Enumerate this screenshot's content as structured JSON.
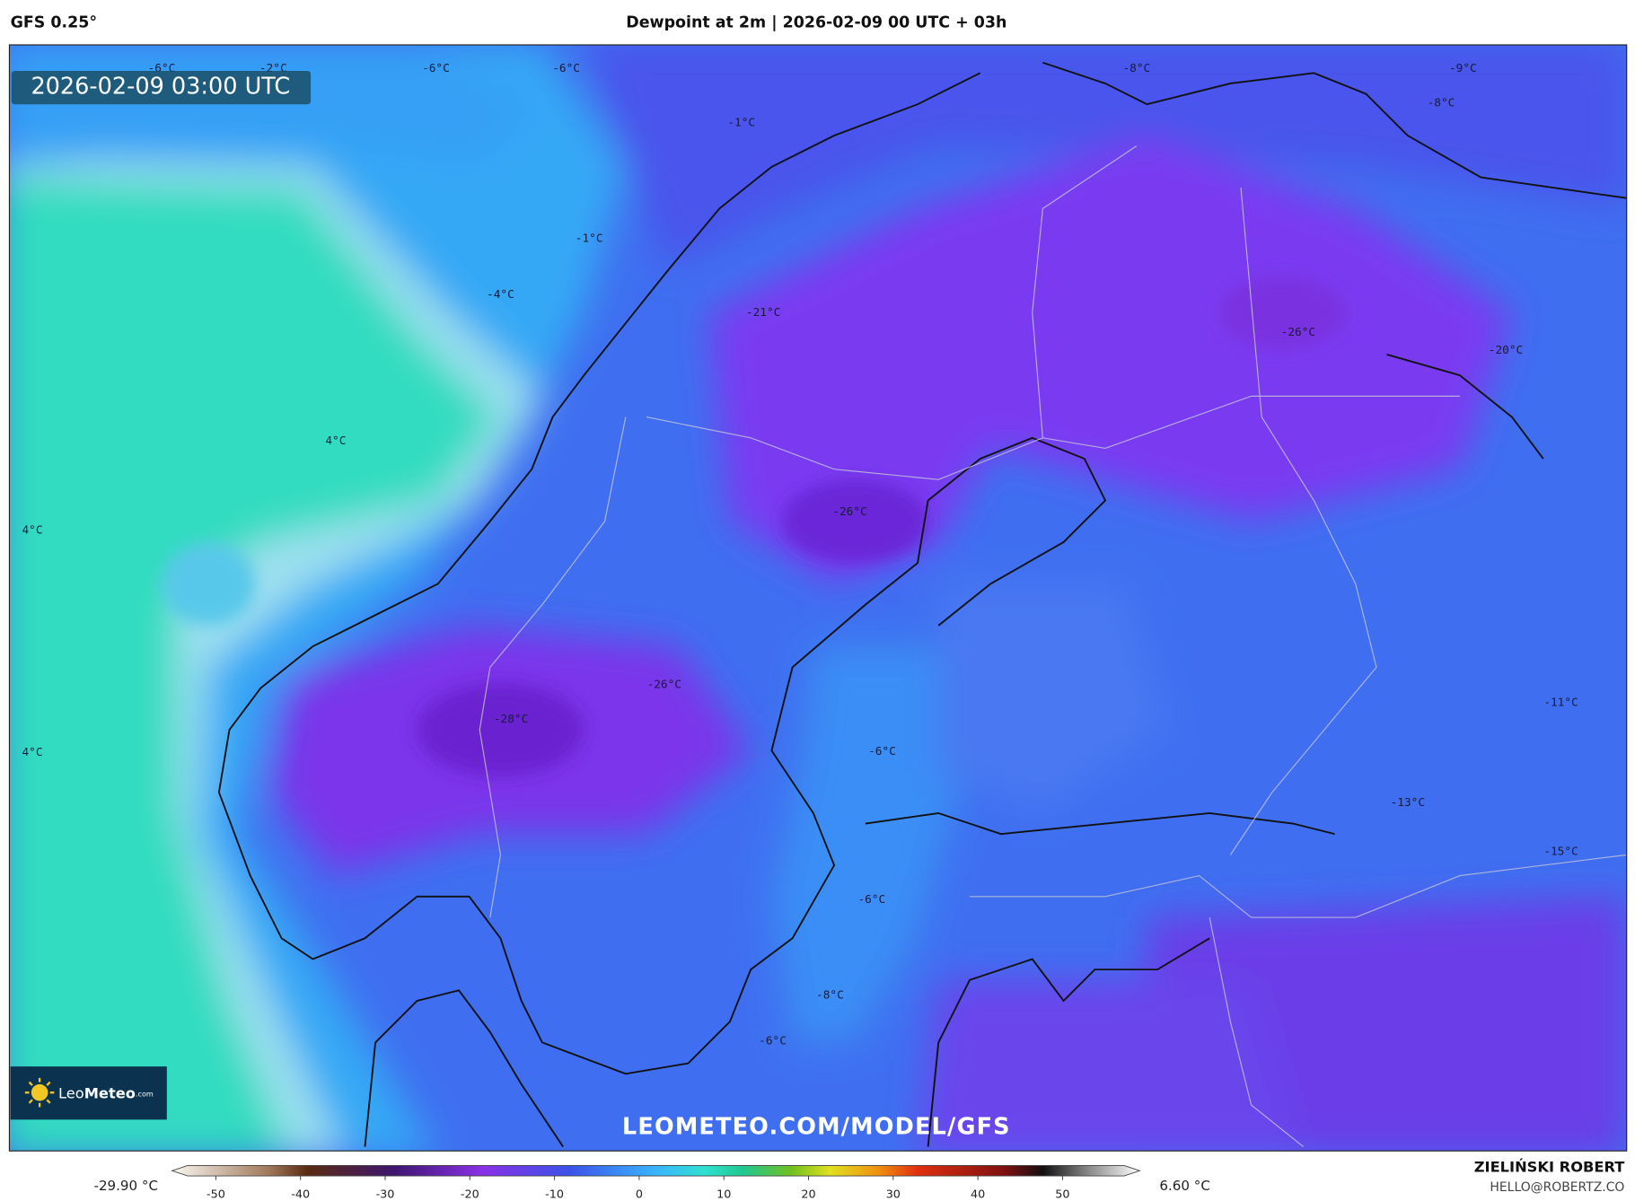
{
  "header": {
    "model": "GFS 0.25°",
    "title": "Dewpoint at 2m | 2026-02-09 00 UTC + 03h"
  },
  "map": {
    "timestamp": "2026-02-09 03:00 UTC",
    "watermark": "LEOMETEO.COM/MODEL/GFS",
    "labels": [
      "-6°C",
      "-2°C",
      "-6°C",
      "-6°C",
      "-8°C",
      "-9°C",
      "-8°C",
      "-1°C",
      "-1°C",
      "-4°C",
      "-21°C",
      "-26°C",
      "-20°C",
      "4°C",
      "4°C",
      "-26°C",
      "-26°C",
      "-28°C",
      "-11°C",
      "-6°C",
      "4°C",
      "-13°C",
      "-15°C",
      "-6°C",
      "-8°C",
      "-6°C"
    ]
  },
  "logo": {
    "leo": "Leo",
    "meteo": "Meteo",
    "suffix": ".com"
  },
  "colorbar": {
    "ticks": [
      -50,
      -40,
      -30,
      -20,
      -10,
      0,
      10,
      20,
      30,
      40,
      50
    ],
    "min_label": "-29.90 °C",
    "max_label": "6.60 °C"
  },
  "footer": {
    "author": "ZIELIŃSKI ROBERT",
    "email": "HELLO@ROBERTZ.CO"
  }
}
